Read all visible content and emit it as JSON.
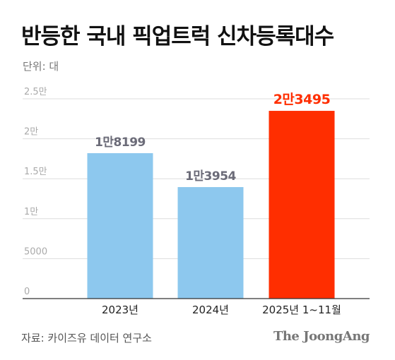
{
  "title": "반등한 국내 픽업트럭 신차등록대수",
  "unit_label": "단위: 대",
  "source": "자료: 카이즈유 데이터 연구소",
  "brand": "The JoongAng",
  "colors": {
    "bar": "#8DC8EE",
    "highlight_bar": "#FF2E00",
    "label": "#6b6b78",
    "highlight_label": "#FF2E00",
    "grid": "#dddddd",
    "axis": "#333333",
    "tick": "#aaaaaa"
  },
  "chart_data": {
    "type": "bar",
    "categories": [
      "2023년",
      "2024년",
      "2025년 1~11월"
    ],
    "values": [
      18199,
      13954,
      23495
    ],
    "data_labels": [
      "1만8199",
      "1만3954",
      "2만3495"
    ],
    "highlight_index": 2,
    "ylim": [
      0,
      25000
    ],
    "yticks": [
      0,
      5000,
      10000,
      15000,
      20000,
      25000
    ],
    "ytick_labels": [
      "0",
      "5000",
      "1만",
      "1.5만",
      "2만",
      "2.5만"
    ],
    "grid": true,
    "xlabel": "",
    "ylabel": ""
  }
}
